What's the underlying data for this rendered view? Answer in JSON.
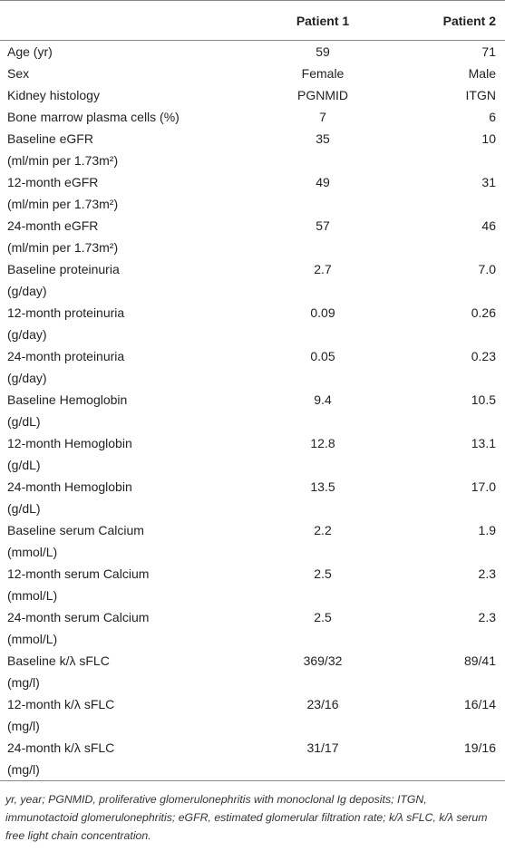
{
  "table": {
    "columns": [
      "Patient 1",
      "Patient 2"
    ],
    "rows": [
      {
        "label": "Age (yr)",
        "values": [
          "59",
          "71"
        ]
      },
      {
        "label": "Sex",
        "values": [
          "Female",
          "Male"
        ]
      },
      {
        "label": "Kidney histology",
        "values": [
          "PGNMID",
          "ITGN"
        ]
      },
      {
        "label": "Bone marrow plasma cells (%)",
        "values": [
          "7",
          "6"
        ]
      },
      {
        "label": "Baseline eGFR",
        "unit": "(ml/min per 1.73m²)",
        "values": [
          "35",
          "10"
        ]
      },
      {
        "label": "12-month eGFR",
        "unit": "(ml/min per 1.73m²)",
        "values": [
          "49",
          "31"
        ]
      },
      {
        "label": "24-month eGFR",
        "unit": "(ml/min per 1.73m²)",
        "values": [
          "57",
          "46"
        ]
      },
      {
        "label": "Baseline proteinuria",
        "unit": "(g/day)",
        "values": [
          "2.7",
          "7.0"
        ]
      },
      {
        "label": "12-month proteinuria",
        "unit": "(g/day)",
        "values": [
          "0.09",
          "0.26"
        ]
      },
      {
        "label": "24-month proteinuria",
        "unit": "(g/day)",
        "values": [
          "0.05",
          "0.23"
        ]
      },
      {
        "label": "Baseline Hemoglobin",
        "unit": "(g/dL)",
        "values": [
          "9.4",
          "10.5"
        ]
      },
      {
        "label": "12-month Hemoglobin",
        "unit": "(g/dL)",
        "values": [
          "12.8",
          "13.1"
        ]
      },
      {
        "label": "24-month Hemoglobin",
        "unit": "(g/dL)",
        "values": [
          "13.5",
          "17.0"
        ]
      },
      {
        "label": "Baseline serum Calcium",
        "unit": "(mmol/L)",
        "values": [
          "2.2",
          "1.9"
        ]
      },
      {
        "label": "12-month serum Calcium",
        "unit": "(mmol/L)",
        "values": [
          "2.5",
          "2.3"
        ]
      },
      {
        "label": "24-month serum Calcium",
        "unit": "(mmol/L)",
        "values": [
          "2.5",
          "2.3"
        ]
      },
      {
        "label": "Baseline k/λ sFLC",
        "unit": "(mg/l)",
        "values": [
          "369/32",
          "89/41"
        ]
      },
      {
        "label": "12-month k/λ sFLC",
        "unit": "(mg/l)",
        "values": [
          "23/16",
          "16/14"
        ]
      },
      {
        "label": "24-month k/λ sFLC",
        "unit": "(mg/l)",
        "values": [
          "31/17",
          "19/16"
        ]
      }
    ]
  },
  "footnote": "yr, year; PGNMID, proliferative glomerulonephritis with monoclonal Ig deposits; ITGN, immunotactoid glomerulonephritis; eGFR, estimated glomerular filtration rate; k/λ sFLC, k/λ serum free light chain concentration."
}
